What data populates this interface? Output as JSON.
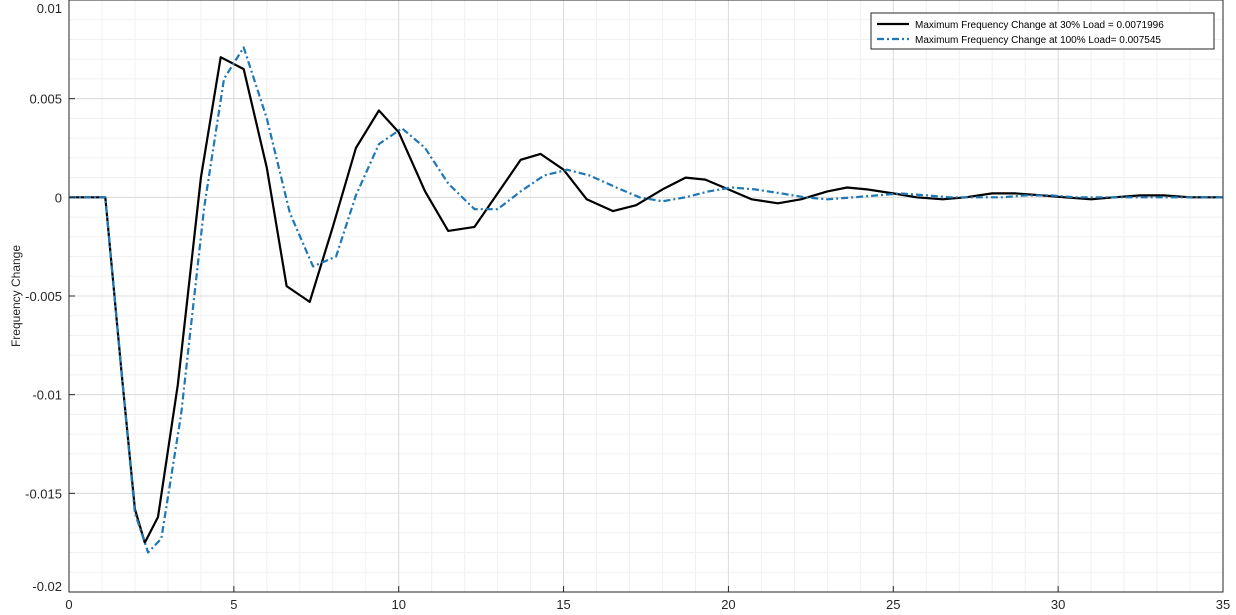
{
  "chart_data": {
    "type": "line",
    "title": "",
    "xlabel": "",
    "ylabel": "Frequency Change",
    "xlim": [
      0,
      35
    ],
    "ylim": [
      -0.02,
      0.01
    ],
    "xticks": [
      0,
      5,
      10,
      15,
      20,
      25,
      30,
      35
    ],
    "xtick_labels": [
      "0",
      "5",
      "10",
      "15",
      "20",
      "25",
      "30",
      "35"
    ],
    "yticks": [
      -0.02,
      -0.015,
      -0.01,
      -0.005,
      0,
      0.005,
      0.01
    ],
    "ytick_labels": [
      "-0.02",
      "-0.015",
      "-0.01",
      "-0.005",
      "0",
      "0.005",
      "0.01"
    ],
    "grid": true,
    "minor_grid": true,
    "legend_position": "top-right",
    "series": [
      {
        "name": "Maximum Frequency Change at 30% Load = 0.0071996",
        "color": "#000000",
        "style": "solid",
        "x": [
          0,
          1.1,
          1.6,
          2.0,
          2.3,
          2.7,
          3.3,
          4.0,
          4.6,
          5.3,
          6.0,
          6.6,
          7.3,
          8.0,
          8.7,
          9.4,
          10.0,
          10.8,
          11.5,
          12.3,
          13.0,
          13.7,
          14.3,
          15.0,
          15.7,
          16.5,
          17.2,
          18.0,
          18.7,
          19.3,
          20.0,
          20.7,
          21.5,
          22.2,
          23.0,
          23.6,
          24.2,
          25.0,
          25.7,
          26.5,
          27.2,
          28.0,
          28.7,
          29.5,
          30.2,
          31.0,
          31.7,
          32.5,
          33.2,
          34.0,
          35.0
        ],
        "y": [
          0,
          0,
          -0.009,
          -0.0158,
          -0.0175,
          -0.0162,
          -0.0095,
          0.001,
          0.0071,
          0.0065,
          0.0015,
          -0.0045,
          -0.0053,
          -0.0015,
          0.0025,
          0.0044,
          0.0033,
          0.0003,
          -0.0017,
          -0.0015,
          0.0002,
          0.0019,
          0.0022,
          0.0014,
          -0.0001,
          -0.0007,
          -0.0004,
          0.0004,
          0.001,
          0.0009,
          0.0004,
          -0.0001,
          -0.0003,
          -0.0001,
          0.0003,
          0.0005,
          0.0004,
          0.0002,
          0.0,
          -0.0001,
          0.0,
          0.0002,
          0.0002,
          0.0001,
          0.0,
          -0.0001,
          0.0,
          0.0001,
          0.0001,
          0.0,
          0.0
        ]
      },
      {
        "name": "Maximum Frequency Change at 100% Load= 0.007545",
        "color": "#1f77b4",
        "style": "dashdot",
        "x": [
          0,
          1.1,
          1.6,
          2.0,
          2.4,
          2.8,
          3.4,
          4.1,
          4.7,
          5.3,
          6.0,
          6.7,
          7.4,
          8.1,
          8.7,
          9.4,
          10.1,
          10.8,
          11.5,
          12.3,
          13.0,
          13.7,
          14.4,
          15.1,
          15.8,
          16.6,
          17.3,
          18.0,
          18.7,
          19.4,
          20.1,
          20.8,
          21.6,
          22.3,
          23.0,
          23.8,
          24.5,
          25.2,
          26.0,
          26.7,
          27.5,
          28.3,
          29.0,
          29.8,
          30.5,
          31.3,
          32.0,
          32.8,
          33.5,
          34.3,
          35.0
        ],
        "y": [
          0,
          0,
          -0.009,
          -0.016,
          -0.018,
          -0.0173,
          -0.011,
          -0.0005,
          0.006,
          0.0076,
          0.004,
          -0.0008,
          -0.0035,
          -0.003,
          0.0001,
          0.0027,
          0.0035,
          0.0025,
          0.0007,
          -0.0006,
          -0.0006,
          0.0003,
          0.0011,
          0.0014,
          0.0011,
          0.0005,
          0.0,
          -0.0002,
          0.0,
          0.0003,
          0.0005,
          0.0004,
          0.0002,
          0.0,
          -0.0001,
          0.0,
          0.0001,
          0.0002,
          0.0001,
          0.0,
          0.0,
          0.0,
          0.0001,
          0.0001,
          0.0,
          0.0,
          0.0,
          0.0,
          0.0,
          0.0,
          0.0
        ]
      }
    ]
  }
}
